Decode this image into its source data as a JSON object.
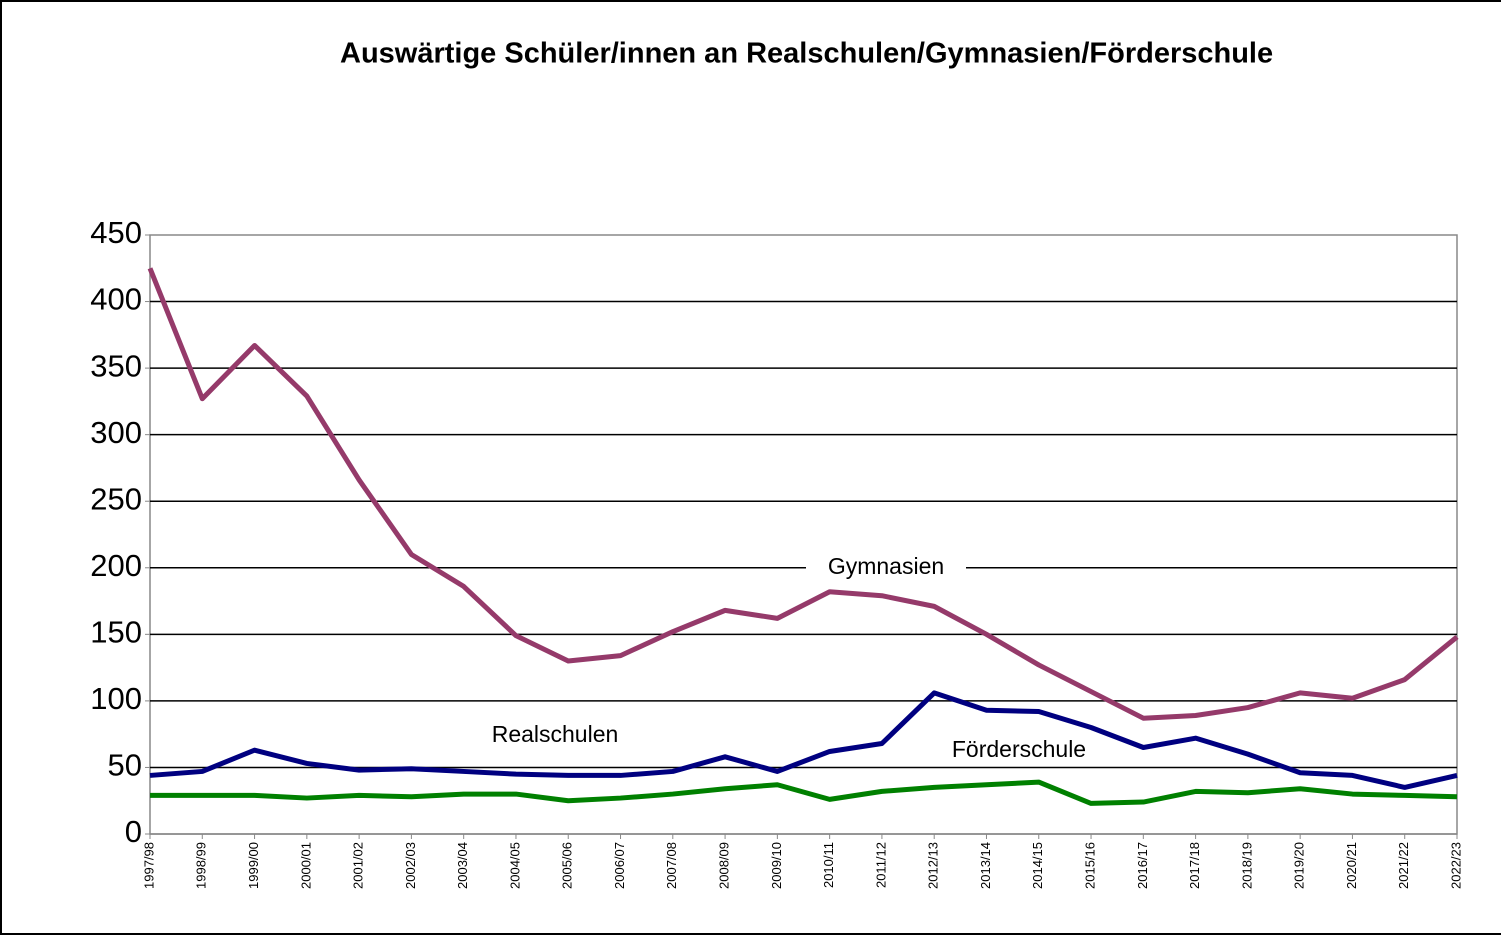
{
  "chart_data": {
    "type": "line",
    "title": "Auswärtige Schüler/innen an Realschulen/Gymnasien/Förderschule",
    "categories": [
      "1997/98",
      "1998/99",
      "1999/00",
      "2000/01",
      "2001/02",
      "2002/03",
      "2003/04",
      "2004/05",
      "2005/06",
      "2006/07",
      "2007/08",
      "2008/09",
      "2009/10",
      "2010/11",
      "2011/12",
      "2012/13",
      "2013/14",
      "2014/15",
      "2015/16",
      "2016/17",
      "2017/18",
      "2018/19",
      "2019/20",
      "2020/21",
      "2021/22",
      "2022/23"
    ],
    "series": [
      {
        "name": "Gymnasien",
        "color": "#953a6a",
        "values": [
          425,
          327,
          367,
          329,
          266,
          210,
          186,
          149,
          130,
          134,
          152,
          168,
          162,
          182,
          179,
          171,
          150,
          127,
          107,
          87,
          89,
          95,
          106,
          102,
          116,
          148
        ]
      },
      {
        "name": "Realschulen",
        "color": "#000080",
        "values": [
          44,
          47,
          63,
          53,
          48,
          49,
          47,
          45,
          44,
          44,
          47,
          58,
          47,
          62,
          68,
          106,
          93,
          92,
          80,
          65,
          72,
          60,
          46,
          44,
          35,
          44
        ]
      },
      {
        "name": "Förderschule",
        "color": "#008000",
        "values": [
          29,
          29,
          29,
          27,
          29,
          28,
          30,
          30,
          25,
          27,
          30,
          34,
          37,
          26,
          32,
          35,
          37,
          39,
          23,
          24,
          32,
          31,
          34,
          30,
          29,
          28
        ]
      }
    ],
    "ylim": [
      0,
      450
    ],
    "yticks": [
      0,
      50,
      100,
      150,
      200,
      250,
      300,
      350,
      400,
      450
    ],
    "grid": true
  }
}
